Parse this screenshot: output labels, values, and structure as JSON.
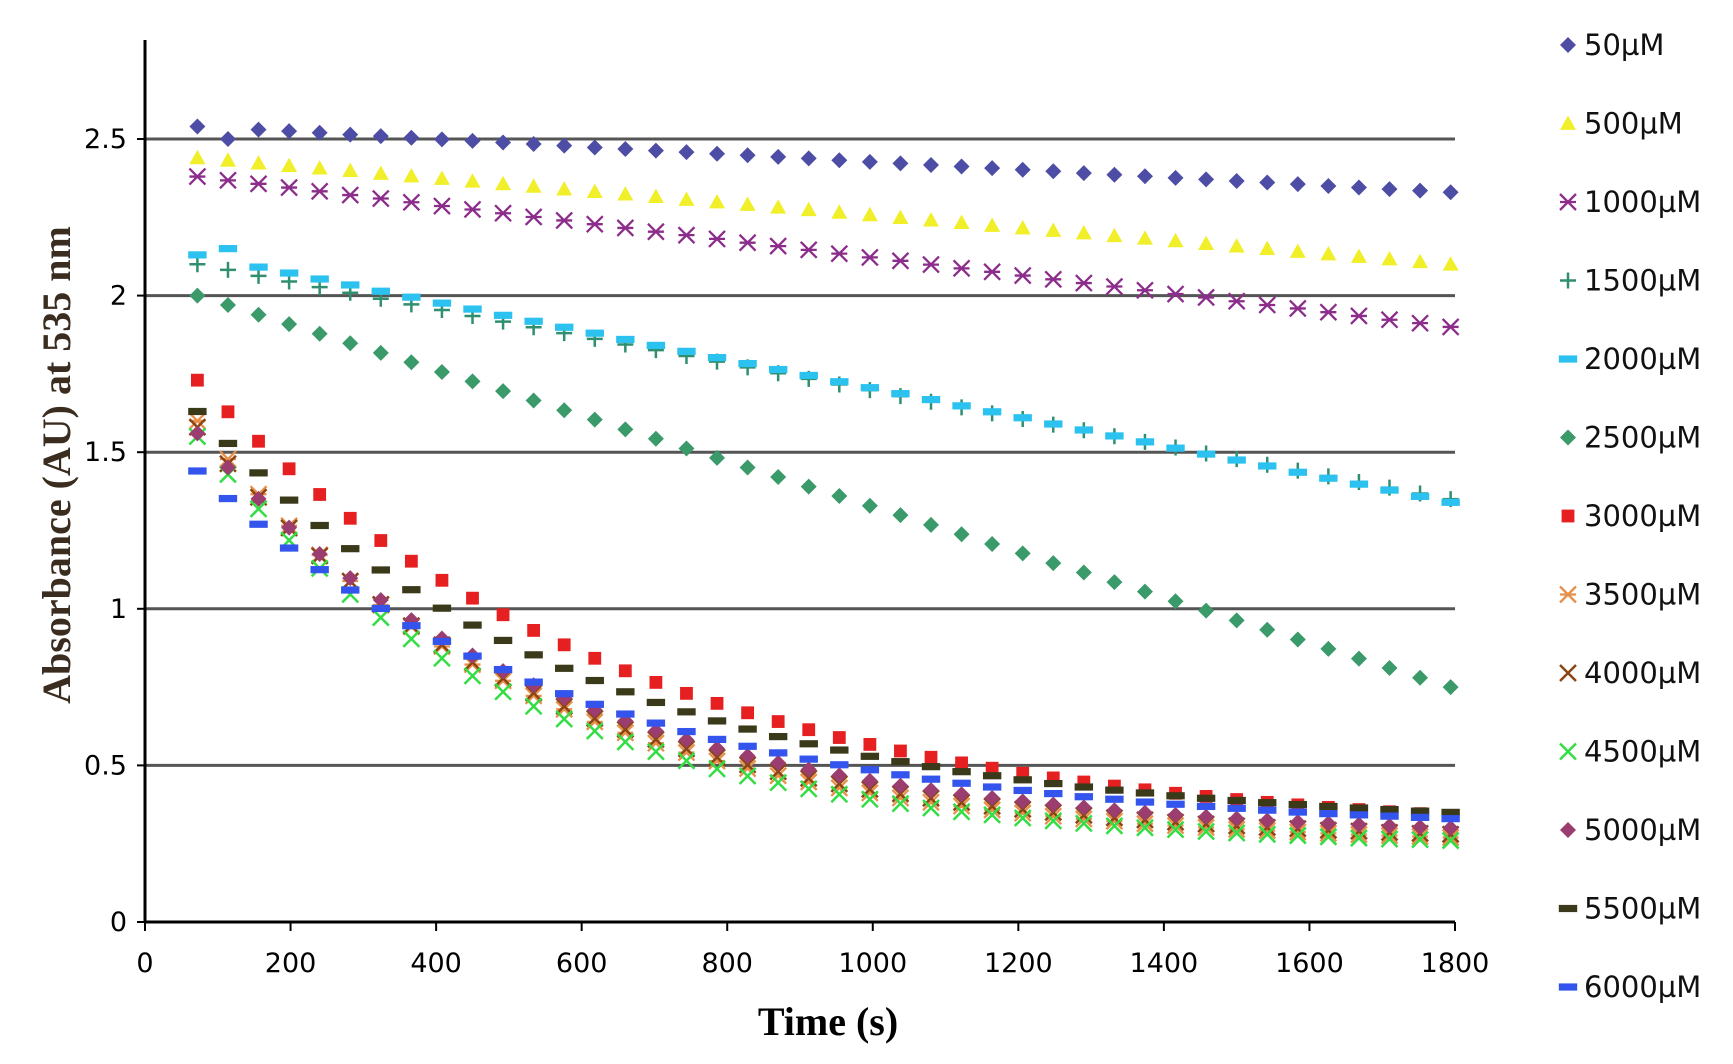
{
  "chart_data": {
    "type": "scatter",
    "title": "",
    "xlabel": "Time (s)",
    "ylabel": "Absorbance (AU) at 535 nm",
    "xlim": [
      0,
      1800
    ],
    "ylim": [
      0,
      2.75
    ],
    "x_ticks": [
      "0",
      "200",
      "400",
      "600",
      "800",
      "1000",
      "1200",
      "1400",
      "1600",
      "1800"
    ],
    "y_ticks": [
      "0",
      "0.5",
      "1",
      "1.5",
      "2",
      "2.5"
    ],
    "gridlines_y": [
      0.5,
      1,
      1.5,
      2,
      2.5
    ],
    "legend_position": "right",
    "x_start": 72,
    "x_step": 42,
    "n_points": 42,
    "series": [
      {
        "name": "50µM",
        "color": "#4d4da6",
        "marker": "diamond",
        "start": 2.54,
        "second": 2.5,
        "end": 2.33
      },
      {
        "name": "500µM",
        "color": "#f0ef29",
        "marker": "triangle",
        "start": 2.44,
        "end": 2.1
      },
      {
        "name": "1000µM",
        "color": "#8c2d8c",
        "marker": "xstar",
        "start": 2.38,
        "end": 1.9
      },
      {
        "name": "1500µM",
        "color": "#2f8f6f",
        "marker": "plus",
        "start": 2.1,
        "end": 1.35
      },
      {
        "name": "2000µM",
        "color": "#2cc2f0",
        "marker": "dash",
        "start": 2.13,
        "second": 2.15,
        "end": 1.34
      },
      {
        "name": "2500µM",
        "color": "#3a9a6a",
        "marker": "diamond",
        "start": 2.0,
        "end": 0.75
      },
      {
        "name": "3000µM",
        "color": "#e62020",
        "marker": "square",
        "start": 1.73,
        "k": 0.0017,
        "end": 0.34
      },
      {
        "name": "3500µM",
        "color": "#e8904a",
        "marker": "xstar",
        "start": 1.6,
        "k": 0.00225,
        "end": 0.27
      },
      {
        "name": "4000µM",
        "color": "#8b4513",
        "marker": "x",
        "start": 1.58,
        "k": 0.0022,
        "end": 0.28
      },
      {
        "name": "4500µM",
        "color": "#33dd44",
        "marker": "x",
        "start": 1.55,
        "k": 0.0023,
        "end": 0.26
      },
      {
        "name": "5000µM",
        "color": "#9b3d6e",
        "marker": "diamond",
        "start": 1.56,
        "k": 0.0021,
        "end": 0.3
      },
      {
        "name": "5500µM",
        "color": "#3a3a1a",
        "marker": "dash",
        "start": 1.63,
        "k": 0.0019,
        "end": 0.35
      },
      {
        "name": "6000µM",
        "color": "#3355ee",
        "marker": "dash",
        "start": 1.44,
        "k": 0.0019,
        "end": 0.33
      }
    ]
  }
}
